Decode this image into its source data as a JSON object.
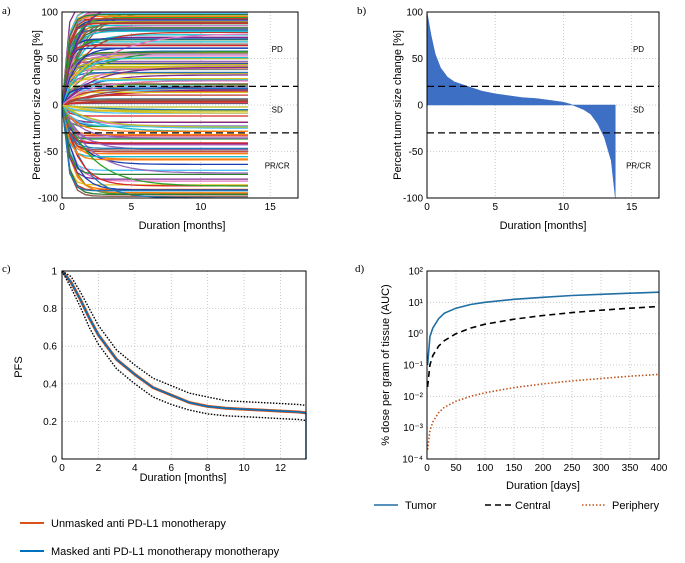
{
  "chart_data": [
    {
      "panel": "a)",
      "type": "line",
      "xlabel": "Duration [months]",
      "ylabel": "Percent tumor size change [%]",
      "xlim": [
        0,
        17
      ],
      "ylim": [
        -100,
        100
      ],
      "xticks": [
        0,
        5,
        10,
        15
      ],
      "yticks": [
        -100,
        -50,
        0,
        50,
        100
      ],
      "grid": true,
      "hlines": [
        20,
        -30
      ],
      "regions": [
        "PD",
        "SD",
        "PR/CR"
      ],
      "series_count": 150,
      "follow_up_months": 13.4,
      "description_values": {
        "max_change": 100,
        "min_change": -100
      }
    },
    {
      "panel": "b)",
      "type": "area",
      "xlabel": "Duration [months]",
      "ylabel": "Percent tumor size change [%]",
      "xlim": [
        0,
        17
      ],
      "ylim": [
        -100,
        100
      ],
      "xticks": [
        0,
        5,
        10,
        15
      ],
      "yticks": [
        -100,
        -50,
        0,
        50,
        100
      ],
      "grid": true,
      "hlines": [
        20,
        -30
      ],
      "regions": [
        "PD",
        "SD",
        "PR/CR"
      ],
      "color": "#3d6fc4",
      "x": [
        0,
        0.3,
        0.6,
        1.0,
        1.5,
        2.0,
        3.0,
        4.0,
        5.0,
        6.0,
        7.0,
        8.0,
        9.0,
        10.0,
        10.5,
        11.0,
        11.5,
        12.0,
        12.5,
        13.0,
        13.5,
        13.8
      ],
      "y": [
        100,
        75,
        55,
        40,
        30,
        25,
        20,
        15,
        12,
        10,
        8,
        7,
        5,
        3,
        1,
        -2,
        -5,
        -10,
        -20,
        -35,
        -60,
        -100
      ]
    },
    {
      "panel": "c)",
      "type": "line",
      "xlabel": "Duration [months]",
      "ylabel": "PFS",
      "xlim": [
        0,
        13.4
      ],
      "ylim": [
        0,
        1
      ],
      "xticks": [
        0,
        2,
        4,
        6,
        8,
        10,
        12
      ],
      "yticks": [
        0,
        0.2,
        0.4,
        0.6,
        0.8,
        1
      ],
      "grid": true,
      "x": [
        0,
        0.5,
        1,
        1.5,
        2,
        3,
        4,
        5,
        6,
        7,
        8,
        9,
        10,
        11,
        12,
        13,
        13.4
      ],
      "series": [
        {
          "name": "Unmasked anti PD-L1 monotherapy",
          "color": "#d95319",
          "values": [
            1,
            0.94,
            0.85,
            0.75,
            0.66,
            0.53,
            0.45,
            0.38,
            0.34,
            0.3,
            0.28,
            0.27,
            0.265,
            0.26,
            0.255,
            0.25,
            0.245
          ]
        },
        {
          "name": "Masked anti PD-L1 monotherapy monotherapy",
          "color": "#0072bd",
          "values": [
            1,
            0.94,
            0.85,
            0.75,
            0.66,
            0.53,
            0.45,
            0.38,
            0.34,
            0.3,
            0.28,
            0.27,
            0.265,
            0.26,
            0.255,
            0.25,
            0.245
          ]
        },
        {
          "name": "upper CI",
          "style": "dotted",
          "color": "#000000",
          "values": [
            1,
            0.97,
            0.89,
            0.8,
            0.71,
            0.58,
            0.5,
            0.43,
            0.39,
            0.35,
            0.33,
            0.31,
            0.305,
            0.3,
            0.295,
            0.29,
            0.285
          ]
        },
        {
          "name": "lower CI",
          "style": "dotted",
          "color": "#000000",
          "values": [
            1,
            0.91,
            0.81,
            0.7,
            0.61,
            0.48,
            0.4,
            0.33,
            0.29,
            0.26,
            0.24,
            0.23,
            0.225,
            0.22,
            0.215,
            0.21,
            0.205
          ]
        }
      ]
    },
    {
      "panel": "d)",
      "type": "line",
      "xlabel": "Duration [days]",
      "ylabel": "% dose per gram of tissue (AUC)",
      "xlim": [
        0,
        400
      ],
      "ylim": [
        0.0001,
        100
      ],
      "yscale": "log",
      "xticks": [
        0,
        50,
        100,
        150,
        200,
        250,
        300,
        350,
        400
      ],
      "yticks": [
        "10⁻⁴",
        "10⁻³",
        "10⁻²",
        "10⁻¹",
        "10⁰",
        "10¹",
        "10²"
      ],
      "grid": true,
      "x": [
        1,
        5,
        10,
        20,
        30,
        50,
        75,
        100,
        150,
        200,
        250,
        300,
        350,
        400
      ],
      "series": [
        {
          "name": "Tumor",
          "color": "#1f6fa5",
          "style": "solid",
          "values": [
            0.1,
            0.8,
            1.5,
            3,
            4.5,
            6.5,
            8.5,
            10,
            12.5,
            14.5,
            16.5,
            18,
            19.5,
            21
          ]
        },
        {
          "name": "Central",
          "color": "#000000",
          "style": "dashed",
          "values": [
            0.02,
            0.1,
            0.2,
            0.4,
            0.6,
            1.0,
            1.5,
            2.0,
            2.9,
            3.8,
            4.7,
            5.6,
            6.5,
            7.4
          ]
        },
        {
          "name": "Periphery",
          "color": "#c0541a",
          "style": "dotted",
          "values": [
            0.0002,
            0.0008,
            0.0015,
            0.003,
            0.0045,
            0.007,
            0.01,
            0.013,
            0.019,
            0.025,
            0.031,
            0.037,
            0.044,
            0.05
          ]
        }
      ]
    }
  ],
  "legend_c": [
    {
      "label": "Unmasked anti PD-L1 monotherapy",
      "color": "#d95319"
    },
    {
      "label": "Masked anti PD-L1 monotherapy monotherapy",
      "color": "#0072bd"
    }
  ],
  "legend_d": [
    {
      "label": "Tumor",
      "color": "#1f6fa5"
    },
    {
      "label": "Central",
      "color": "#000000"
    },
    {
      "label": "Periphery",
      "color": "#c0541a"
    }
  ]
}
